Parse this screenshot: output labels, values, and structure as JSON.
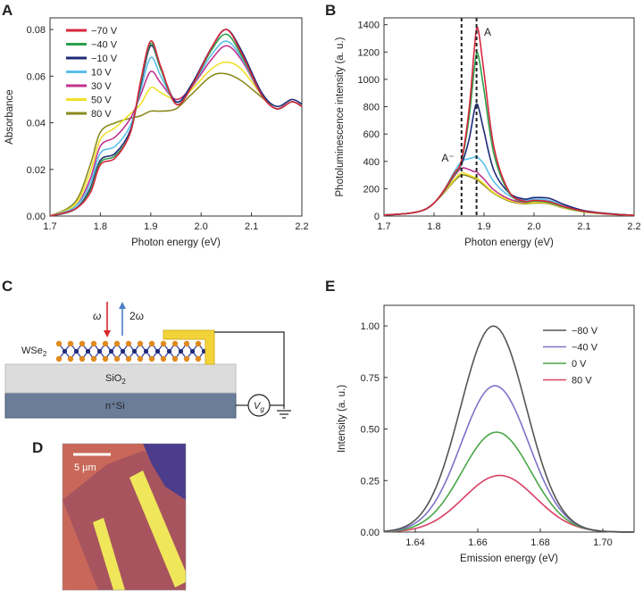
{
  "panels": {
    "A": {
      "letter": "A"
    },
    "B": {
      "letter": "B"
    },
    "C": {
      "letter": "C"
    },
    "D": {
      "letter": "D"
    },
    "E": {
      "letter": "E"
    }
  },
  "colors": {
    "red": "#d7263d",
    "green": "#2ca04c",
    "navy": "#1f2a78",
    "cyan": "#5bc0eb",
    "magenta": "#c2338f",
    "yellow": "#f0e12a",
    "olive": "#8a8a1e",
    "gray": "#555555",
    "lavender": "#7b74c9",
    "lightgreen": "#49a648",
    "pinkred": "#d94064"
  },
  "schematic": {
    "material_label": "WSe",
    "material_sub": "2",
    "omega_label": "ω",
    "two_omega_label": "2ω",
    "oxide_label": "SiO",
    "oxide_sub": "2",
    "substrate_label": "n⁺Si",
    "gate_label": "V",
    "gate_sub": "g"
  },
  "micrograph": {
    "scalebar_label": "5 µm"
  },
  "chart_data": [
    {
      "panel": "A",
      "type": "line",
      "xlabel": "Photon energy (eV)",
      "ylabel": "Absorbance",
      "xlim": [
        1.7,
        2.2
      ],
      "ylim": [
        0.0,
        0.085
      ],
      "xticks": [
        1.7,
        1.8,
        1.9,
        2.0,
        2.1,
        2.2
      ],
      "xticklabels": [
        "1.7",
        "1.8",
        "1.9",
        "2.0",
        "2.1",
        "2.2"
      ],
      "yticks": [
        0.0,
        0.02,
        0.04,
        0.06,
        0.08
      ],
      "yticklabels": [
        "0.00",
        "0.02",
        "0.04",
        "0.06",
        "0.08"
      ],
      "legend_position": "top-left",
      "x": [
        1.7,
        1.75,
        1.78,
        1.8,
        1.83,
        1.86,
        1.88,
        1.9,
        1.92,
        1.95,
        1.98,
        2.02,
        2.05,
        2.08,
        2.12,
        2.15,
        2.18,
        2.2
      ],
      "series": [
        {
          "name": "−70 V",
          "color": "red",
          "values": [
            0.0,
            0.003,
            0.01,
            0.022,
            0.025,
            0.036,
            0.058,
            0.075,
            0.064,
            0.048,
            0.055,
            0.072,
            0.08,
            0.07,
            0.052,
            0.046,
            0.049,
            0.047
          ]
        },
        {
          "name": "−40 V",
          "color": "green",
          "values": [
            0.0,
            0.003,
            0.011,
            0.023,
            0.026,
            0.036,
            0.057,
            0.074,
            0.063,
            0.048,
            0.055,
            0.071,
            0.078,
            0.069,
            0.052,
            0.046,
            0.049,
            0.047
          ]
        },
        {
          "name": "−10 V",
          "color": "navy",
          "values": [
            0.0,
            0.003,
            0.012,
            0.024,
            0.027,
            0.037,
            0.056,
            0.073,
            0.063,
            0.049,
            0.056,
            0.072,
            0.08,
            0.071,
            0.053,
            0.047,
            0.05,
            0.048
          ]
        },
        {
          "name": "10 V",
          "color": "cyan",
          "values": [
            0.0,
            0.004,
            0.014,
            0.027,
            0.03,
            0.039,
            0.054,
            0.068,
            0.06,
            0.049,
            0.055,
            0.069,
            0.075,
            0.068,
            0.052,
            0.046,
            0.049,
            0.047
          ]
        },
        {
          "name": "30 V",
          "color": "magenta",
          "values": [
            0.0,
            0.004,
            0.016,
            0.03,
            0.034,
            0.042,
            0.052,
            0.062,
            0.057,
            0.05,
            0.055,
            0.067,
            0.073,
            0.067,
            0.052,
            0.046,
            0.049,
            0.047
          ]
        },
        {
          "name": "50 V",
          "color": "yellow",
          "values": [
            0.0,
            0.005,
            0.019,
            0.033,
            0.038,
            0.044,
            0.048,
            0.055,
            0.053,
            0.05,
            0.054,
            0.063,
            0.066,
            0.063,
            0.052,
            0.046,
            0.049,
            0.047
          ]
        },
        {
          "name": "80 V",
          "color": "olive",
          "values": [
            0.0,
            0.006,
            0.022,
            0.036,
            0.04,
            0.042,
            0.043,
            0.045,
            0.045,
            0.046,
            0.052,
            0.06,
            0.061,
            0.058,
            0.051,
            0.046,
            0.049,
            0.047
          ]
        }
      ]
    },
    {
      "panel": "B",
      "type": "line",
      "xlabel": "Photon energy (eV)",
      "ylabel": "Photoluminescence intensity (a. u.)",
      "xlim": [
        1.7,
        2.2
      ],
      "ylim": [
        0,
        1450
      ],
      "xticks": [
        1.7,
        1.8,
        1.9,
        2.0,
        2.1,
        2.2
      ],
      "xticklabels": [
        "1.7",
        "1.8",
        "1.9",
        "2.0",
        "2.1",
        "2.2"
      ],
      "yticks": [
        0,
        200,
        400,
        600,
        800,
        1000,
        1200,
        1400
      ],
      "yticklabels": [
        "0",
        "200",
        "400",
        "600",
        "800",
        "1000",
        "1200",
        "1400"
      ],
      "vlines": [
        1.855,
        1.885
      ],
      "annotations": [
        {
          "text": "A",
          "x": 1.9,
          "y": 1320
        },
        {
          "text": "A⁻",
          "x": 1.815,
          "y": 400
        }
      ],
      "x": [
        1.7,
        1.75,
        1.78,
        1.8,
        1.82,
        1.84,
        1.855,
        1.87,
        1.88,
        1.885,
        1.89,
        1.9,
        1.92,
        1.95,
        1.98,
        2.0,
        2.03,
        2.06,
        2.1,
        2.15,
        2.2
      ],
      "series": [
        {
          "name": "−70 V",
          "color": "red",
          "values": [
            8,
            20,
            45,
            95,
            190,
            310,
            410,
            780,
            1200,
            1370,
            1330,
            1050,
            500,
            180,
            110,
            115,
            105,
            70,
            35,
            15,
            5
          ]
        },
        {
          "name": "−40 V",
          "color": "green",
          "values": [
            8,
            20,
            45,
            95,
            185,
            300,
            400,
            720,
            1060,
            1190,
            1150,
            920,
            450,
            170,
            105,
            110,
            100,
            65,
            33,
            15,
            5
          ]
        },
        {
          "name": "−10 V",
          "color": "navy",
          "values": [
            8,
            20,
            45,
            95,
            185,
            300,
            380,
            560,
            760,
            820,
            780,
            620,
            330,
            170,
            125,
            135,
            130,
            85,
            40,
            18,
            5
          ]
        },
        {
          "name": "10 V",
          "color": "cyan",
          "values": [
            8,
            20,
            45,
            95,
            190,
            320,
            400,
            420,
            430,
            440,
            420,
            380,
            250,
            150,
            115,
            125,
            115,
            75,
            37,
            16,
            5
          ]
        },
        {
          "name": "30 V",
          "color": "magenta",
          "values": [
            8,
            20,
            45,
            95,
            180,
            290,
            350,
            340,
            325,
            325,
            305,
            270,
            190,
            125,
            100,
            110,
            100,
            65,
            33,
            15,
            5
          ]
        },
        {
          "name": "50 V",
          "color": "yellow",
          "values": [
            8,
            20,
            45,
            95,
            175,
            265,
            315,
            300,
            285,
            280,
            265,
            235,
            170,
            115,
            95,
            100,
            95,
            60,
            30,
            14,
            5
          ]
        },
        {
          "name": "80 V",
          "color": "olive",
          "values": [
            8,
            20,
            45,
            95,
            170,
            255,
            300,
            290,
            275,
            270,
            255,
            225,
            165,
            110,
            90,
            95,
            90,
            58,
            30,
            14,
            5
          ]
        }
      ]
    },
    {
      "panel": "E",
      "type": "line",
      "xlabel": "Emission energy (eV)",
      "ylabel": "Intensity (a. u.)",
      "xlim": [
        1.63,
        1.71
      ],
      "ylim": [
        0,
        1.1
      ],
      "xticks": [
        1.64,
        1.66,
        1.68,
        1.7
      ],
      "xticklabels": [
        "1.64",
        "1.66",
        "1.68",
        "1.70"
      ],
      "yticks": [
        0,
        0.25,
        0.5,
        0.75,
        1.0
      ],
      "yticklabels": [
        "0.00",
        "0.25",
        "0.50",
        "0.75",
        "1.00"
      ],
      "legend_position": "top-right",
      "series": [
        {
          "name": "−80 V",
          "color": "gray",
          "peak": 1.0,
          "center": 1.665,
          "width": 0.0105
        },
        {
          "name": "−40 V",
          "color": "lavender",
          "peak": 0.71,
          "center": 1.6655,
          "width": 0.0108
        },
        {
          "name": "0 V",
          "color": "lightgreen",
          "peak": 0.485,
          "center": 1.666,
          "width": 0.011
        },
        {
          "name": "80 V",
          "color": "pinkred",
          "peak": 0.275,
          "center": 1.667,
          "width": 0.0115
        }
      ]
    }
  ]
}
